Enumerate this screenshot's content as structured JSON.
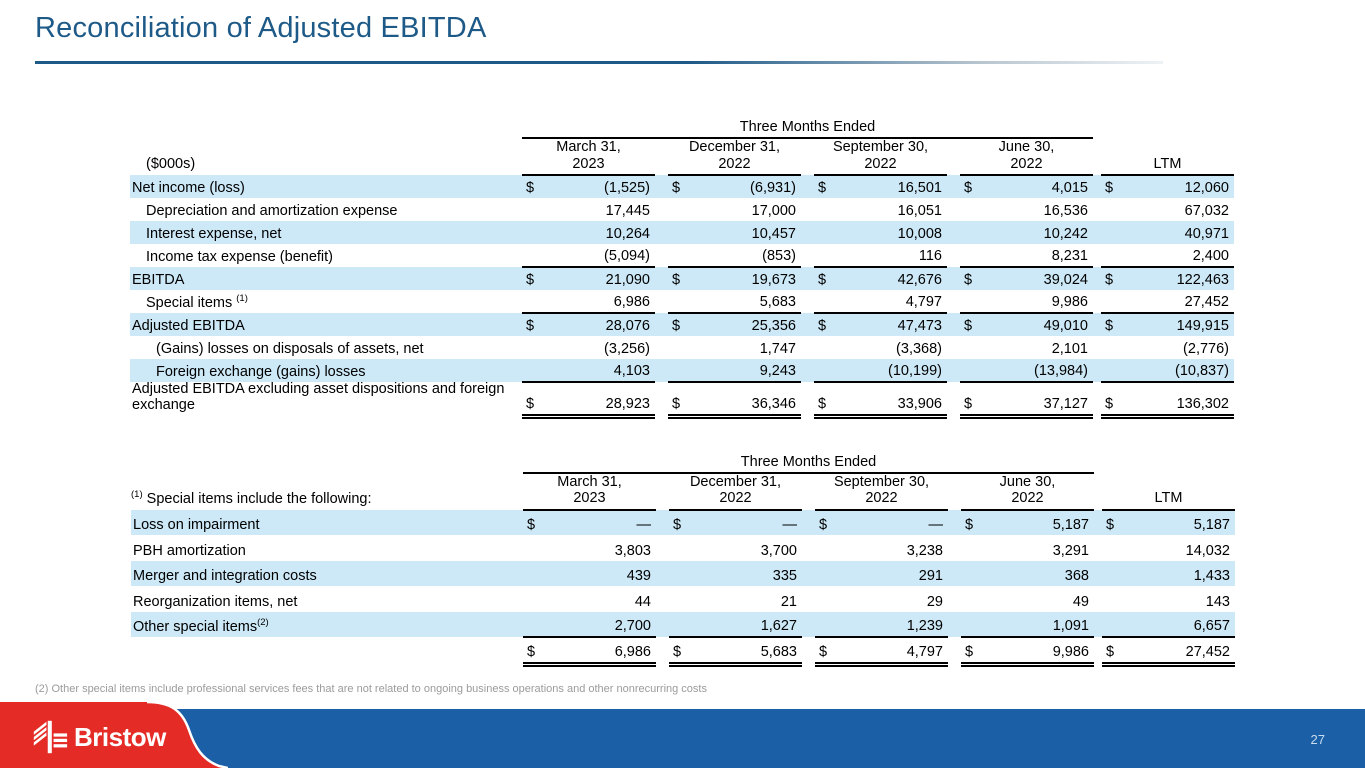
{
  "title": "Reconciliation of Adjusted EBITDA",
  "footnote": "(2) Other special items include professional services fees that are not related to ongoing business operations and other nonrecurring costs",
  "footer": {
    "logo_text": "Bristow",
    "page_number": "27"
  },
  "colors": {
    "title_blue": "#1E5A88",
    "row_highlight": "#CDE9F7",
    "footer_bar_blue": "#1B5FA6",
    "logo_red": "#E42B26",
    "footnote_gray": "#9B9B9B"
  },
  "tables": [
    {
      "name": "ebitda-reconciliation",
      "corner_sup": "",
      "corner_label": "($000s)",
      "span_header": "Three Months Ended",
      "columns": [
        {
          "line1": "March 31,",
          "line2": "2023"
        },
        {
          "line1": "December 31,",
          "line2": "2022"
        },
        {
          "line1": "September 30,",
          "line2": "2022"
        },
        {
          "line1": "June 30,",
          "line2": "2022"
        },
        {
          "line1": "LTM",
          "line2": ""
        }
      ],
      "rows": [
        {
          "label": "Net income (loss)",
          "sup": "",
          "indent": 0,
          "highlight": true,
          "dollar": true,
          "values": [
            "(1,525)",
            "(6,931)",
            "16,501",
            "4,015",
            "12,060"
          ],
          "rule": "none",
          "tall": false
        },
        {
          "label": "Depreciation and amortization expense",
          "sup": "",
          "indent": 1,
          "highlight": false,
          "dollar": false,
          "values": [
            "17,445",
            "17,000",
            "16,051",
            "16,536",
            "67,032"
          ],
          "rule": "none",
          "tall": false
        },
        {
          "label": "Interest expense, net",
          "sup": "",
          "indent": 1,
          "highlight": true,
          "dollar": false,
          "values": [
            "10,264",
            "10,457",
            "10,008",
            "10,242",
            "40,971"
          ],
          "rule": "none",
          "tall": false
        },
        {
          "label": "Income tax expense (benefit)",
          "sup": "",
          "indent": 1,
          "highlight": false,
          "dollar": false,
          "values": [
            "(5,094)",
            "(853)",
            "116",
            "8,231",
            "2,400"
          ],
          "rule": "single",
          "tall": false
        },
        {
          "label": "EBITDA",
          "sup": "",
          "indent": 0,
          "highlight": true,
          "dollar": true,
          "values": [
            "21,090",
            "19,673",
            "42,676",
            "39,024",
            "122,463"
          ],
          "rule": "none",
          "tall": false
        },
        {
          "label": "Special items ",
          "sup": "(1)",
          "indent": 1,
          "highlight": false,
          "dollar": false,
          "values": [
            "6,986",
            "5,683",
            "4,797",
            "9,986",
            "27,452"
          ],
          "rule": "single",
          "tall": false
        },
        {
          "label": "Adjusted EBITDA",
          "sup": "",
          "indent": 0,
          "highlight": true,
          "dollar": true,
          "values": [
            "28,076",
            "25,356",
            "47,473",
            "49,010",
            "149,915"
          ],
          "rule": "none",
          "tall": false
        },
        {
          "label": "(Gains) losses on disposals of assets, net",
          "sup": "",
          "indent": 2,
          "highlight": false,
          "dollar": false,
          "values": [
            "(3,256)",
            "1,747",
            "(3,368)",
            "2,101",
            "(2,776)"
          ],
          "rule": "none",
          "tall": false
        },
        {
          "label": "Foreign exchange (gains) losses",
          "sup": "",
          "indent": 2,
          "highlight": true,
          "dollar": false,
          "values": [
            "4,103",
            "9,243",
            "(10,199)",
            "(13,984)",
            "(10,837)"
          ],
          "rule": "single",
          "tall": false
        },
        {
          "label": "Adjusted EBITDA excluding asset dispositions and foreign exchange",
          "sup": "",
          "indent": 0,
          "highlight": false,
          "dollar": true,
          "values": [
            "28,923",
            "36,346",
            "33,906",
            "37,127",
            "136,302"
          ],
          "rule": "double",
          "tall": true
        }
      ]
    },
    {
      "name": "special-items",
      "corner_sup": "(1)",
      "corner_label": " Special items include the following:",
      "span_header": "Three Months Ended",
      "columns": [
        {
          "line1": "March 31,",
          "line2": "2023"
        },
        {
          "line1": "December 31,",
          "line2": "2022"
        },
        {
          "line1": "September 30,",
          "line2": "2022"
        },
        {
          "line1": "June 30,",
          "line2": "2022"
        },
        {
          "line1": "LTM",
          "line2": ""
        }
      ],
      "rows": [
        {
          "label": "Loss on impairment",
          "sup": "",
          "indent": 0,
          "highlight": true,
          "dollar": true,
          "values": [
            "—",
            "—",
            "—",
            "5,187",
            "5,187"
          ],
          "rule": "none",
          "tall": false
        },
        {
          "label": "PBH amortization",
          "sup": "",
          "indent": 0,
          "highlight": false,
          "dollar": false,
          "values": [
            "3,803",
            "3,700",
            "3,238",
            "3,291",
            "14,032"
          ],
          "rule": "none",
          "tall": false
        },
        {
          "label": "Merger and integration costs",
          "sup": "",
          "indent": 0,
          "highlight": true,
          "dollar": false,
          "values": [
            "439",
            "335",
            "291",
            "368",
            "1,433"
          ],
          "rule": "none",
          "tall": false
        },
        {
          "label": "Reorganization items, net",
          "sup": "",
          "indent": 0,
          "highlight": false,
          "dollar": false,
          "values": [
            "44",
            "21",
            "29",
            "49",
            "143"
          ],
          "rule": "none",
          "tall": false
        },
        {
          "label": "Other special items",
          "sup": "(2)",
          "indent": 0,
          "highlight": true,
          "dollar": false,
          "values": [
            "2,700",
            "1,627",
            "1,239",
            "1,091",
            "6,657"
          ],
          "rule": "single",
          "tall": false
        },
        {
          "label": "",
          "sup": "",
          "indent": 0,
          "highlight": false,
          "dollar": true,
          "values": [
            "6,986",
            "5,683",
            "4,797",
            "9,986",
            "27,452"
          ],
          "rule": "double",
          "tall": false
        }
      ]
    }
  ]
}
